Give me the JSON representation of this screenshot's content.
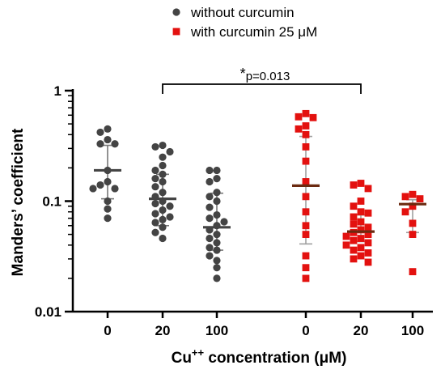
{
  "chart_data": {
    "type": "scatter",
    "ylabel": "Manders’ coefficient",
    "xlabel_main": "Cu",
    "xlabel_sup": "++",
    "xlabel_tail": " concentration (μM)",
    "yscale": "log",
    "ylim": [
      0.01,
      1
    ],
    "y_ticks": [
      {
        "value": 1,
        "label": "1"
      },
      {
        "value": 0.1,
        "label": "0.1"
      },
      {
        "value": 0.01,
        "label": "0.01"
      }
    ],
    "legend_position": "top-center",
    "groups": [
      {
        "series": 0,
        "x_label": "0",
        "median": 0.19,
        "err_low": 0.105,
        "err_high": 0.32,
        "values": [
          0.45,
          0.42,
          0.36,
          0.33,
          0.33,
          0.19,
          0.15,
          0.14,
          0.13,
          0.13,
          0.1,
          0.085,
          0.07
        ]
      },
      {
        "series": 0,
        "x_label": "20",
        "median": 0.105,
        "err_low": 0.06,
        "err_high": 0.175,
        "values": [
          0.32,
          0.31,
          0.28,
          0.25,
          0.21,
          0.19,
          0.175,
          0.16,
          0.15,
          0.135,
          0.12,
          0.11,
          0.1,
          0.095,
          0.09,
          0.083,
          0.077,
          0.072,
          0.068,
          0.064,
          0.058,
          0.052,
          0.046
        ]
      },
      {
        "series": 0,
        "x_label": "100",
        "median": 0.058,
        "err_low": 0.036,
        "err_high": 0.118,
        "values": [
          0.19,
          0.19,
          0.16,
          0.15,
          0.12,
          0.11,
          0.1,
          0.088,
          0.075,
          0.07,
          0.065,
          0.06,
          0.055,
          0.05,
          0.046,
          0.042,
          0.038,
          0.036,
          0.032,
          0.029,
          0.025,
          0.02
        ]
      },
      {
        "series": 1,
        "x_label": "0",
        "median": 0.138,
        "err_low": 0.041,
        "err_high": 0.385,
        "values": [
          0.62,
          0.58,
          0.57,
          0.48,
          0.45,
          0.4,
          0.31,
          0.23,
          0.15,
          0.11,
          0.08,
          0.06,
          0.05,
          0.032,
          0.025,
          0.02
        ]
      },
      {
        "series": 1,
        "x_label": "20",
        "median": 0.053,
        "err_low": 0.043,
        "err_high": 0.075,
        "values": [
          0.145,
          0.14,
          0.13,
          0.1,
          0.09,
          0.08,
          0.078,
          0.072,
          0.065,
          0.062,
          0.058,
          0.055,
          0.052,
          0.05,
          0.048,
          0.046,
          0.044,
          0.042,
          0.04,
          0.038,
          0.036,
          0.034,
          0.032,
          0.03,
          0.028
        ]
      },
      {
        "series": 1,
        "x_label": "100",
        "median": 0.094,
        "err_low": 0.052,
        "err_high": 0.103,
        "values": [
          0.115,
          0.11,
          0.105,
          0.09,
          0.08,
          0.063,
          0.05,
          0.023
        ]
      }
    ],
    "series": [
      {
        "name": "without curcumin",
        "color": "#444444",
        "marker": "circle"
      },
      {
        "name": "with curcumin 25 μM",
        "color": "#e3110f",
        "marker": "square"
      }
    ],
    "median_colors": [
      "#444444",
      "#6b2a10"
    ],
    "errorbar_colors": [
      "#777777",
      "#a0a0a0"
    ],
    "annotation": {
      "star": "*",
      "text": "p=0.013",
      "from_group": 1,
      "to_group": 4
    }
  }
}
